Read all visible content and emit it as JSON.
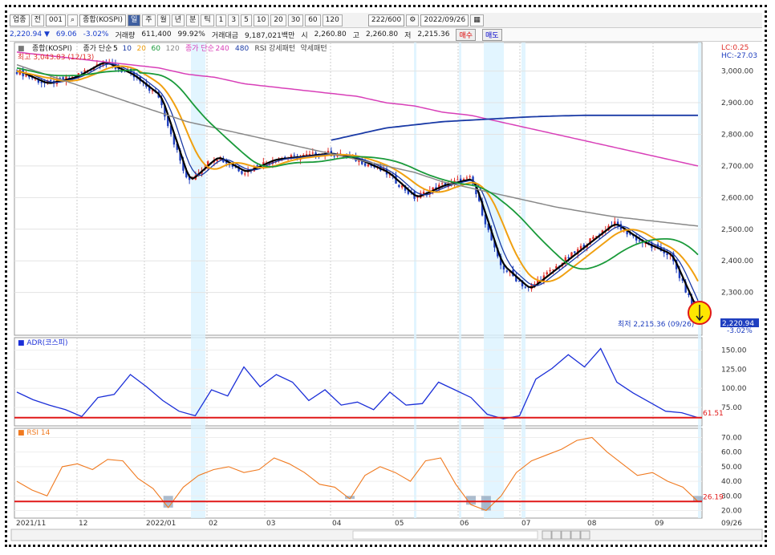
{
  "toolbar": {
    "market": "업종",
    "code_label": "전",
    "code": "001",
    "name": "종합(KOSPI)",
    "periods": [
      "일",
      "주",
      "월",
      "년",
      "분",
      "틱"
    ],
    "minutes": [
      "1",
      "3",
      "5",
      "10",
      "20",
      "30",
      "60",
      "120"
    ],
    "count": "222",
    "total": "600",
    "date": "2022/09/26"
  },
  "info": {
    "price": "2,220.94",
    "arrow": "▼",
    "change": "69.06",
    "rate": "-3.02%",
    "vol_label": "거래량",
    "vol": "611,400",
    "vol_pct": "99.92%",
    "amt_label": "거래대금",
    "amt": "9,187,021백만",
    "open_label": "시",
    "open": "2,260.80",
    "high_label": "고",
    "high": "2,260.80",
    "low_label": "저",
    "low": "2,215.36",
    "buy": "매수",
    "sell": "매도"
  },
  "colors": {
    "up": "#e0302a",
    "down": "#1f3fbf",
    "ma5": "#000000",
    "ma10": "#1a3aa6",
    "ma20": "#f0a010",
    "ma60": "#1a9a3a",
    "ma120": "#888888",
    "ma240": "#d83fb8",
    "ma480": "#1a3aa6",
    "adr": "#1b2fd8",
    "rsi": "#f07a20",
    "hline": "#e01818"
  },
  "chart_data": [
    {
      "type": "candlestick",
      "title": "종합(KOSPI)",
      "legend": [
        "종가 단순",
        "5",
        "10",
        "20",
        "60",
        "120",
        "종가 단순",
        "240",
        "480",
        "RSI 강세패턴",
        "약세패턴"
      ],
      "annotations": {
        "high": "최고 3,043.83 (12/13)",
        "low": "최저 2,215.36 (09/26)",
        "lc": "LC:0.25",
        "hc": "HC:-27.03",
        "last": "2,220.94",
        "last_pct": "-3.02%"
      },
      "y_ticks": [
        "3,000.00",
        "2,900.00",
        "2,800.00",
        "2,700.00",
        "2,600.00",
        "2,500.00",
        "2,400.00",
        "2,300.00"
      ],
      "ylim": [
        2180,
        3070
      ],
      "x_ticks": [
        "2021/11",
        "12",
        "2022/01",
        "02",
        "03",
        "04",
        "05",
        "06",
        "07",
        "08",
        "09",
        "09/26"
      ],
      "close": {
        "dates": [
          "2021/11/01",
          "2021/11/15",
          "2021/12/01",
          "2021/12/13",
          "2022/01/03",
          "2022/01/13",
          "2022/01/27",
          "2022/02/10",
          "2022/02/24",
          "2022/03/10",
          "2022/03/24",
          "2022/04/05",
          "2022/04/19",
          "2022/05/03",
          "2022/05/17",
          "2022/06/01",
          "2022/06/10",
          "2022/06/23",
          "2022/07/05",
          "2022/07/20",
          "2022/08/03",
          "2022/08/16",
          "2022/08/30",
          "2022/09/13",
          "2022/09/26"
        ],
        "values": [
          3000,
          2960,
          2980,
          3030,
          2990,
          2920,
          2650,
          2730,
          2680,
          2720,
          2730,
          2740,
          2720,
          2680,
          2600,
          2640,
          2660,
          2390,
          2310,
          2380,
          2450,
          2520,
          2460,
          2420,
          2220
        ]
      },
      "ma_lines": {
        "ma120": [
          3020,
          2990,
          2960,
          2930,
          2900,
          2870,
          2840,
          2820,
          2800,
          2780,
          2760,
          2740,
          2720,
          2700,
          2680,
          2650,
          2630,
          2610,
          2590,
          2570,
          2555,
          2540,
          2530,
          2520,
          2510
        ],
        "ma240": [
          3060,
          3050,
          3040,
          3030,
          3020,
          3010,
          2990,
          2980,
          2960,
          2950,
          2940,
          2930,
          2920,
          2900,
          2890,
          2870,
          2860,
          2840,
          2820,
          2800,
          2780,
          2760,
          2740,
          2720,
          2700
        ],
        "ma480": [
          null,
          null,
          null,
          null,
          null,
          null,
          null,
          null,
          null,
          null,
          null,
          2780,
          2800,
          2820,
          2830,
          2840,
          2845,
          2850,
          2855,
          2858,
          2860,
          2860,
          2860,
          2860,
          2860
        ]
      }
    },
    {
      "type": "line",
      "title": "ADR(코스피)",
      "ylim": [
        55,
        160
      ],
      "y_ticks": [
        "150.00",
        "125.00",
        "100.00",
        "75.00"
      ],
      "hline": 61.51,
      "last_label": "61.51",
      "values": [
        95,
        85,
        78,
        72,
        63,
        88,
        92,
        118,
        102,
        84,
        70,
        64,
        98,
        90,
        128,
        102,
        118,
        108,
        84,
        98,
        78,
        82,
        72,
        95,
        78,
        80,
        108,
        98,
        88,
        66,
        60,
        64,
        112,
        126,
        144,
        128,
        152,
        108,
        94,
        82,
        70,
        68,
        61.51
      ]
    },
    {
      "type": "line",
      "title": "RSI 14",
      "ylim": [
        17,
        73
      ],
      "y_ticks": [
        "70.00",
        "60.00",
        "50.00",
        "40.00",
        "30.00",
        "20.00"
      ],
      "hline": 26.19,
      "last_label": "26.19",
      "values": [
        40,
        34,
        30,
        50,
        52,
        48,
        55,
        54,
        42,
        35,
        22,
        36,
        44,
        48,
        50,
        46,
        48,
        56,
        52,
        46,
        38,
        36,
        28,
        44,
        50,
        46,
        40,
        54,
        56,
        38,
        24,
        20,
        30,
        46,
        54,
        58,
        62,
        68,
        70,
        60,
        52,
        44,
        46,
        40,
        36,
        26.19
      ]
    }
  ]
}
